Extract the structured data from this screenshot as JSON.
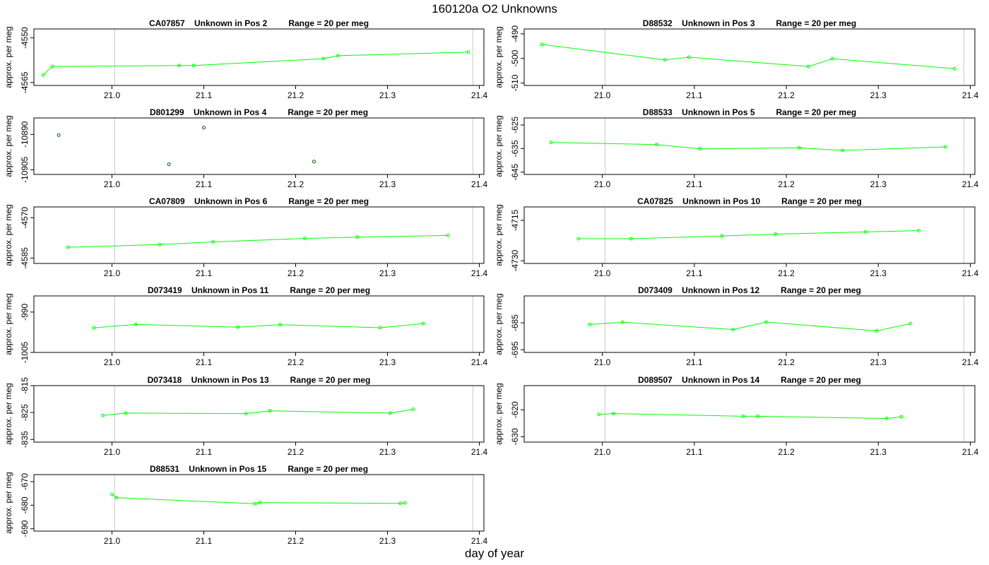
{
  "figure": {
    "title": "160120a  O2 Unknowns",
    "xlabel": "day of year"
  },
  "chart_data": [
    {
      "type": "line",
      "title": "CA07857    Unknown in Pos 2         Range = 20 per meg",
      "ylabel": "approx. per meg",
      "xlim": [
        20.915,
        21.405
      ],
      "xticks": [
        21.0,
        21.1,
        21.2,
        21.3,
        21.4
      ],
      "vlines": [
        21.003,
        21.393
      ],
      "ylim": [
        -4566,
        -4547
      ],
      "yticks": [
        -4550,
        -4565
      ],
      "line_color": "#00ff00",
      "marker_color": "#00ff00",
      "show_line": true,
      "series": [
        {
          "x": [
            20.925,
            20.935,
            21.073,
            21.089,
            21.23,
            21.246,
            21.388
          ],
          "y": [
            -4562.5,
            -4559.6,
            -4559.3,
            -4559.3,
            -4557.0,
            -4556.0,
            -4554.8
          ]
        }
      ]
    },
    {
      "type": "line",
      "title": "D88532    Unknown in Pos 3         Range = 20 per meg",
      "ylabel": "approx. per meg",
      "xlim": [
        20.915,
        21.405
      ],
      "xticks": [
        21.0,
        21.1,
        21.2,
        21.3,
        21.4
      ],
      "vlines": [
        21.003,
        21.393
      ],
      "ylim": [
        -511,
        -488
      ],
      "yticks": [
        -490,
        -500,
        -510
      ],
      "line_color": "#00ff00",
      "marker_color": "#00ff00",
      "show_line": true,
      "series": [
        {
          "x": [
            20.934,
            21.068,
            21.094,
            21.224,
            21.25,
            21.383
          ],
          "y": [
            -494.3,
            -500.6,
            -499.5,
            -503.3,
            -500.1,
            -504.2
          ]
        }
      ]
    },
    {
      "type": "scatter",
      "title": "D801299    Unknown in Pos 4         Range = 20 per meg",
      "ylabel": "approx. per meg",
      "xlim": [
        20.915,
        21.405
      ],
      "xticks": [
        21.0,
        21.1,
        21.2,
        21.3,
        21.4
      ],
      "vlines": [
        21.003,
        21.393
      ],
      "ylim": [
        -10907,
        -10883
      ],
      "yticks": [
        -10890,
        -10905
      ],
      "line_color": "#00ff00",
      "marker_color": "#006400",
      "show_line": false,
      "series": [
        {
          "x": [
            20.942,
            21.062,
            21.1,
            21.22
          ],
          "y": [
            -10890.3,
            -10902.7,
            -10887.1,
            -10901.5
          ]
        }
      ]
    },
    {
      "type": "line",
      "title": "D88533    Unknown in Pos 5         Range = 20 per meg",
      "ylabel": "approx. per meg",
      "xlim": [
        20.915,
        21.405
      ],
      "xticks": [
        21.0,
        21.1,
        21.2,
        21.3,
        21.4
      ],
      "vlines": [
        21.003,
        21.393
      ],
      "ylim": [
        -646,
        -622
      ],
      "yticks": [
        -625,
        -635,
        -645
      ],
      "line_color": "#00ff00",
      "marker_color": "#00ff00",
      "show_line": true,
      "series": [
        {
          "x": [
            20.944,
            21.059,
            21.106,
            21.214,
            21.261,
            21.373
          ],
          "y": [
            -632.4,
            -633.3,
            -635.1,
            -634.7,
            -635.8,
            -634.3
          ]
        }
      ]
    },
    {
      "type": "line",
      "title": "CA07809    Unknown in Pos 6         Range = 20 per meg",
      "ylabel": "approx. per meg",
      "xlim": [
        20.915,
        21.405
      ],
      "xticks": [
        21.0,
        21.1,
        21.2,
        21.3,
        21.4
      ],
      "vlines": [
        21.003,
        21.393
      ],
      "ylim": [
        -4587,
        -4566
      ],
      "yticks": [
        -4570,
        -4585
      ],
      "line_color": "#00ff00",
      "marker_color": "#00ff00",
      "show_line": true,
      "series": [
        {
          "x": [
            20.952,
            21.052,
            21.11,
            21.21,
            21.267,
            21.366
          ],
          "y": [
            -4581.0,
            -4580.0,
            -4579.0,
            -4577.7,
            -4577.2,
            -4576.6
          ]
        }
      ]
    },
    {
      "type": "line",
      "title": "CA07825    Unknown in Pos 10         Range = 20 per meg",
      "ylabel": "approx. per meg",
      "xlim": [
        20.915,
        21.405
      ],
      "xticks": [
        21.0,
        21.1,
        21.2,
        21.3,
        21.4
      ],
      "vlines": [
        21.003,
        21.393
      ],
      "ylim": [
        -4731,
        -4710
      ],
      "yticks": [
        -4715,
        -4730
      ],
      "line_color": "#00ff00",
      "marker_color": "#00ff00",
      "show_line": true,
      "series": [
        {
          "x": [
            20.974,
            21.031,
            21.13,
            21.188,
            21.286,
            21.344
          ],
          "y": [
            -4721.8,
            -4721.8,
            -4720.8,
            -4720.1,
            -4719.3,
            -4718.8
          ]
        }
      ]
    },
    {
      "type": "line",
      "title": "D073419    Unknown in Pos 11         Range = 20 per meg",
      "ylabel": "approx. per meg",
      "xlim": [
        20.915,
        21.405
      ],
      "xticks": [
        21.0,
        21.1,
        21.2,
        21.3,
        21.4
      ],
      "vlines": [
        21.003,
        21.393
      ],
      "ylim": [
        -1005,
        -984
      ],
      "yticks": [
        -990,
        -1005
      ],
      "line_color": "#00ff00",
      "marker_color": "#00ff00",
      "show_line": true,
      "series": [
        {
          "x": [
            20.98,
            21.026,
            21.137,
            21.183,
            21.292,
            21.339
          ],
          "y": [
            -995.9,
            -994.6,
            -995.6,
            -994.7,
            -995.8,
            -994.3
          ]
        }
      ]
    },
    {
      "type": "line",
      "title": "D073409    Unknown in Pos 12         Range = 20 per meg",
      "ylabel": "approx. per meg",
      "xlim": [
        20.915,
        21.405
      ],
      "xticks": [
        21.0,
        21.1,
        21.2,
        21.3,
        21.4
      ],
      "vlines": [
        21.003,
        21.393
      ],
      "ylim": [
        -696,
        -675
      ],
      "yticks": [
        -685,
        -695
      ],
      "line_color": "#00ff00",
      "marker_color": "#00ff00",
      "show_line": true,
      "series": [
        {
          "x": [
            20.986,
            21.022,
            21.142,
            21.178,
            21.298,
            21.335
          ],
          "y": [
            -685.6,
            -684.8,
            -687.5,
            -684.7,
            -688.0,
            -685.3
          ]
        }
      ]
    },
    {
      "type": "line",
      "title": "D073418    Unknown in Pos 13         Range = 20 per meg",
      "ylabel": "approx. per meg",
      "xlim": [
        20.915,
        21.405
      ],
      "xticks": [
        21.0,
        21.1,
        21.2,
        21.3,
        21.4
      ],
      "vlines": [
        21.003,
        21.393
      ],
      "ylim": [
        -836,
        -815
      ],
      "yticks": [
        -815,
        -825,
        -835
      ],
      "line_color": "#00ff00",
      "marker_color": "#00ff00",
      "show_line": true,
      "series": [
        {
          "x": [
            20.99,
            21.015,
            21.146,
            21.172,
            21.303,
            21.328
          ],
          "y": [
            -826.1,
            -825.2,
            -825.4,
            -824.4,
            -825.2,
            -823.8
          ]
        }
      ]
    },
    {
      "type": "line",
      "title": "D089507    Unknown in Pos 14         Range = 20 per meg",
      "ylabel": "approx. per meg",
      "xlim": [
        20.915,
        21.405
      ],
      "xticks": [
        21.0,
        21.1,
        21.2,
        21.3,
        21.4
      ],
      "vlines": [
        21.003,
        21.393
      ],
      "ylim": [
        -632,
        -611
      ],
      "yticks": [
        -620,
        -630
      ],
      "line_color": "#00ff00",
      "marker_color": "#00ff00",
      "show_line": true,
      "series": [
        {
          "x": [
            20.996,
            21.012,
            21.153,
            21.169,
            21.309,
            21.325
          ],
          "y": [
            -621.7,
            -621.4,
            -622.4,
            -622.4,
            -623.2,
            -622.6
          ]
        }
      ]
    },
    {
      "type": "line",
      "title": "D88531    Unknown in Pos 15         Range = 20 per meg",
      "ylabel": "approx. per meg",
      "xlim": [
        20.915,
        21.405
      ],
      "xticks": [
        21.0,
        21.1,
        21.2,
        21.3,
        21.4
      ],
      "vlines": [
        21.003,
        21.393
      ],
      "ylim": [
        -691,
        -667
      ],
      "yticks": [
        -670,
        -680,
        -690
      ],
      "line_color": "#00ff00",
      "marker_color": "#00ff00",
      "show_line": true,
      "series": [
        {
          "x": [
            21.0,
            21.005,
            21.156,
            21.161,
            21.314,
            21.319
          ],
          "y": [
            -675.4,
            -676.8,
            -679.4,
            -678.9,
            -679.2,
            -679.0
          ]
        }
      ]
    }
  ]
}
